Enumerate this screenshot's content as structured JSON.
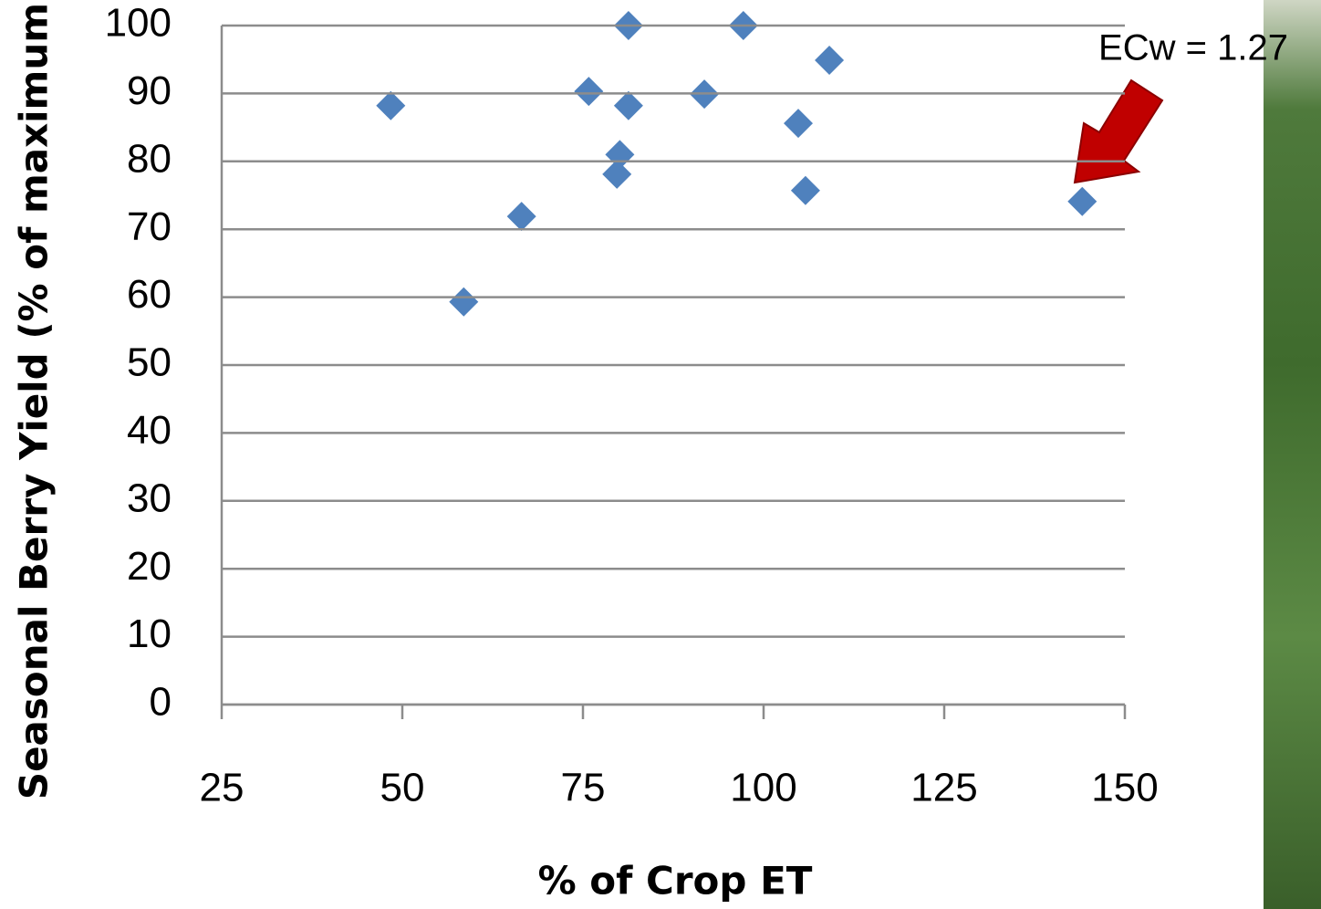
{
  "chart_data": {
    "type": "scatter",
    "x_label": "% of Crop ET",
    "y_label": "Seasonal Berry Yield (% of maximum)",
    "annotation": "ECw = 1.27",
    "series": [
      {
        "color": "#4f81bd",
        "x": [
          48.4,
          58.5,
          66.5,
          75.8,
          79.7,
          80.1,
          81.3,
          81.3,
          91.8,
          97.2,
          104.8,
          105.8,
          109.1,
          144.1
        ],
        "values": [
          88.2,
          59.3,
          71.9,
          90.3,
          78.1,
          81.0,
          100,
          88.2,
          89.9,
          100,
          85.6,
          75.7,
          94.9,
          74.1
        ]
      }
    ],
    "xlim": [
      25,
      150
    ],
    "xticks": [
      25,
      50,
      75,
      100,
      125,
      150
    ],
    "ylim": [
      0,
      100
    ],
    "yticks": [
      0,
      10,
      20,
      30,
      40,
      50,
      60,
      70,
      80,
      90,
      100
    ],
    "grid": true
  }
}
